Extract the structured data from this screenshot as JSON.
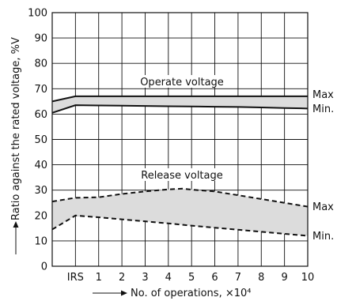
{
  "chart_data": {
    "type": "area",
    "ylabel": "Ratio against the rated voltage, %V",
    "xlabel": "No. of operations, ×10⁴",
    "x_categories": [
      "IRS",
      "1",
      "2",
      "3",
      "4",
      "5",
      "6",
      "7",
      "8",
      "9",
      "10"
    ],
    "xlim": [
      -1,
      10
    ],
    "ylim": [
      0,
      100
    ],
    "y_ticks": [
      0,
      10,
      20,
      30,
      40,
      50,
      60,
      70,
      80,
      90,
      100
    ],
    "grid": true,
    "annotations": {
      "operate": "Operate voltage",
      "release": "Release voltage",
      "operate_max": "Max",
      "operate_min": "Min.",
      "release_max": "Max",
      "release_min": "Min."
    },
    "series": [
      {
        "group": "operate",
        "bound": "max",
        "style": "solid",
        "x": [
          -1,
          0,
          1,
          2,
          3,
          4,
          5,
          6,
          7,
          8,
          9,
          10
        ],
        "y": [
          65,
          67,
          67,
          67,
          67,
          67,
          67,
          67,
          67,
          67,
          67,
          67
        ]
      },
      {
        "group": "operate",
        "bound": "min",
        "style": "solid",
        "x": [
          -1,
          0,
          1,
          2,
          3,
          4,
          5,
          6,
          7,
          8,
          9,
          10
        ],
        "y": [
          60.5,
          63.5,
          63.4,
          63.3,
          63.2,
          63.1,
          63.0,
          62.9,
          62.8,
          62.6,
          62.4,
          62.2
        ]
      },
      {
        "group": "release",
        "bound": "max",
        "style": "dashed",
        "x": [
          -1,
          0,
          1,
          2,
          3,
          4,
          4.6,
          5,
          6,
          7,
          8,
          9,
          10
        ],
        "y": [
          25.5,
          27,
          27.2,
          28.5,
          29.5,
          30.3,
          30.6,
          30.2,
          29.5,
          28,
          26.5,
          25,
          23.5
        ]
      },
      {
        "group": "release",
        "bound": "min",
        "style": "dashed",
        "x": [
          -1,
          0,
          1,
          2,
          3,
          4,
          5,
          6,
          7,
          8,
          9,
          10
        ],
        "y": [
          14.5,
          20,
          19.3,
          18.5,
          17.7,
          16.9,
          16.0,
          15.2,
          14.4,
          13.6,
          12.8,
          12.0
        ]
      }
    ],
    "fill_color": "#dcdcdc",
    "line_color": "#111111"
  }
}
